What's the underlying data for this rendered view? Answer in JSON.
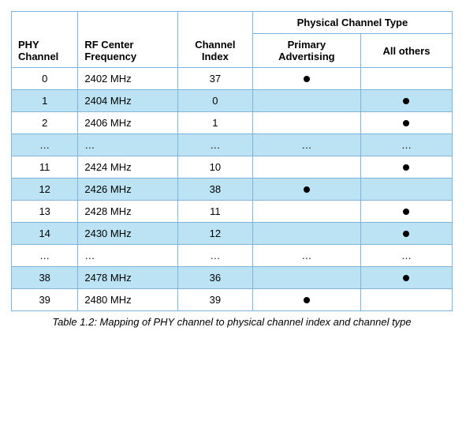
{
  "colors": {
    "border": "#7db4d8",
    "row_alt": "#bbe3f4",
    "row_base": "#ffffff",
    "dot": "#000000",
    "text": "#000000",
    "caption": "#000000"
  },
  "col_widths": [
    "80px",
    "120px",
    "90px",
    "130px",
    "110px"
  ],
  "headers": {
    "group": "Physical Channel Type",
    "phy": "PHY Channel",
    "rf": "RF Center Frequency",
    "ci": "Channel Index",
    "pa": "Primary Advertising",
    "ao": "All others"
  },
  "caption": "Table 1.2:  Mapping of PHY channel to physical channel index and channel type",
  "rows": [
    {
      "phy": "0",
      "rf": "2402 MHz",
      "ci": "37",
      "pa": "dot",
      "ao": ""
    },
    {
      "phy": "1",
      "rf": "2404 MHz",
      "ci": "0",
      "pa": "",
      "ao": "dot"
    },
    {
      "phy": "2",
      "rf": "2406 MHz",
      "ci": "1",
      "pa": "",
      "ao": "dot"
    },
    {
      "phy": "...",
      "rf": "...",
      "ci": "...",
      "pa": "...",
      "ao": "..."
    },
    {
      "phy": "11",
      "rf": "2424 MHz",
      "ci": "10",
      "pa": "",
      "ao": "dot"
    },
    {
      "phy": "12",
      "rf": "2426 MHz",
      "ci": "38",
      "pa": "dot",
      "ao": ""
    },
    {
      "phy": "13",
      "rf": "2428 MHz",
      "ci": "11",
      "pa": "",
      "ao": "dot"
    },
    {
      "phy": "14",
      "rf": "2430 MHz",
      "ci": "12",
      "pa": "",
      "ao": "dot"
    },
    {
      "phy": "...",
      "rf": "...",
      "ci": "...",
      "pa": "...",
      "ao": "..."
    },
    {
      "phy": "38",
      "rf": "2478 MHz",
      "ci": "36",
      "pa": "",
      "ao": "dot"
    },
    {
      "phy": "39",
      "rf": "2480 MHz",
      "ci": "39",
      "pa": "dot",
      "ao": ""
    }
  ]
}
